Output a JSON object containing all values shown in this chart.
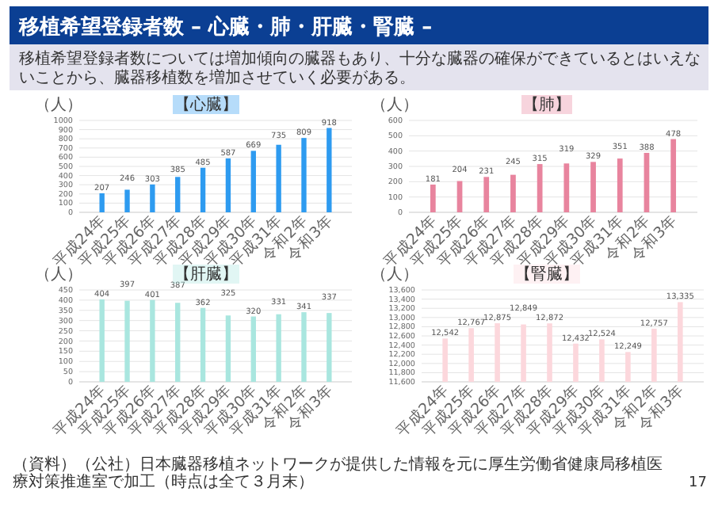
{
  "chart_data": [
    {
      "type": "other",
      "title": "移植希望登録者数 – 心臓・肺・肝臓・腎臓 –",
      "subtitle": "移植希望登録者数については増加傾向の臓器もあり、十分な臓器の確保ができているとはいえないことから、臓器移植数を増加させていく必要がある。",
      "annotations": [
        "（資料）（公社）日本臓器移植ネットワークが提供した情報を元に厚生労働省健康局移植医療対策推進室で加工（時点は全て３月末）",
        "17"
      ]
    },
    {
      "type": "bar",
      "title": "【心臓】",
      "ylabel": "（人）",
      "categories": [
        "平成24年",
        "平成25年",
        "平成26年",
        "平成27年",
        "平成28年",
        "平成29年",
        "平成30年",
        "平成31年",
        "令和2年",
        "令和3年"
      ],
      "values": [
        207,
        246,
        303,
        385,
        485,
        587,
        669,
        735,
        809,
        918
      ],
      "color": "#2e9bf0",
      "ylim": [
        0,
        1000
      ],
      "yticks": [
        0,
        100,
        200,
        300,
        400,
        500,
        600,
        700,
        800,
        900,
        1000
      ],
      "grid": "y",
      "data_labels": true
    },
    {
      "type": "bar",
      "title": "【肺】",
      "ylabel": "（人）",
      "categories": [
        "平成24年",
        "平成25年",
        "平成26年",
        "平成27年",
        "平成28年",
        "平成29年",
        "平成30年",
        "平成31年",
        "令和2年",
        "令和3年"
      ],
      "values": [
        181,
        204,
        231,
        245,
        315,
        319,
        329,
        351,
        388,
        478
      ],
      "color": "#e8849e",
      "ylim": [
        0,
        600
      ],
      "yticks": [
        0,
        100,
        200,
        300,
        400,
        500,
        600
      ],
      "grid": "y",
      "data_labels": true
    },
    {
      "type": "bar",
      "title": "【肝臓】",
      "ylabel": "（人）",
      "categories": [
        "平成24年",
        "平成25年",
        "平成26年",
        "平成27年",
        "平成28年",
        "平成29年",
        "平成30年",
        "平成31年",
        "令和2年",
        "令和3年"
      ],
      "values": [
        404,
        397,
        401,
        387,
        362,
        325,
        320,
        331,
        341,
        337
      ],
      "color": "#a9e6df",
      "ylim": [
        0,
        450
      ],
      "yticks": [
        0,
        50,
        100,
        150,
        200,
        250,
        300,
        350,
        400,
        450
      ],
      "grid": "y",
      "data_labels": true
    },
    {
      "type": "bar",
      "title": "【腎臓】",
      "ylabel": "（人）",
      "categories": [
        "平成24年",
        "平成25年",
        "平成26年",
        "平成27年",
        "平成28年",
        "平成29年",
        "平成30年",
        "平成31年",
        "令和2年",
        "令和3年"
      ],
      "values": [
        12542,
        12767,
        12875,
        12849,
        12872,
        12432,
        12524,
        12249,
        12757,
        13335
      ],
      "value_labels": [
        "12,542",
        "12,767",
        "12,875",
        "12,849",
        "12,872",
        "12,432",
        "12,524",
        "12,249",
        "12,757",
        "13,335"
      ],
      "color": "#fcd7dc",
      "ylim": [
        11600,
        13600
      ],
      "yticks": [
        {
          "value": 11600,
          "label": "11,600"
        },
        {
          "value": 11800,
          "label": "11,800"
        },
        {
          "value": 12000,
          "label": "12,000"
        },
        {
          "value": 12200,
          "label": "12,200"
        },
        {
          "value": 12400,
          "label": "12,400"
        },
        {
          "value": 12600,
          "label": "12,600"
        },
        {
          "value": 12800,
          "label": "12,800"
        },
        {
          "value": 13000,
          "label": "13,000"
        },
        {
          "value": 13200,
          "label": "13,200"
        },
        {
          "value": 13400,
          "label": "13,400"
        },
        {
          "value": 13600,
          "label": "13,600"
        }
      ],
      "grid": "y"
    }
  ]
}
